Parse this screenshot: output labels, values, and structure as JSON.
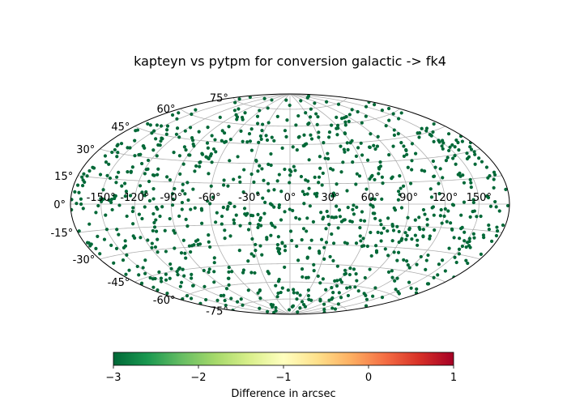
{
  "chart_data": {
    "type": "scatter",
    "title": "kapteyn vs pytpm for conversion galactic -> fk4",
    "projection": "hammer-aitoff",
    "grid": true,
    "xlabel": "",
    "ylabel": "",
    "x_tick_labels": [
      "-150°",
      "-120°",
      "-90°",
      "-60°",
      "-30°",
      "0°",
      "30°",
      "60°",
      "90°",
      "120°",
      "150°"
    ],
    "y_tick_labels": [
      "-75°",
      "-60°",
      "-45°",
      "-30°",
      "-15°",
      "0°",
      "15°",
      "30°",
      "45°",
      "60°",
      "75°"
    ],
    "x_ticks": [
      -150,
      -120,
      -90,
      -60,
      -30,
      0,
      30,
      60,
      90,
      120,
      150
    ],
    "y_ticks": [
      -75,
      -60,
      -45,
      -30,
      -15,
      0,
      15,
      30,
      45,
      60,
      75
    ],
    "xlim": [
      -180,
      180
    ],
    "ylim": [
      -90,
      90
    ],
    "marker_color": "#006837",
    "colorbar": {
      "label": "Difference in arcsec",
      "range": [
        -3,
        1
      ],
      "ticks": [
        -3,
        -2,
        -1,
        0,
        1
      ],
      "tick_labels": [
        "−3",
        "−2",
        "−1",
        "0",
        "1"
      ],
      "colormap": "RdYlGn_r",
      "colors": [
        "#006837",
        "#1a9850",
        "#66bd63",
        "#a6d96a",
        "#d9ef8b",
        "#ffffbf",
        "#fee08b",
        "#fdae61",
        "#f46d43",
        "#d73027",
        "#a50026"
      ]
    },
    "points": {
      "count": 1000,
      "distribution": "uniform on sphere",
      "value_all": -3
    }
  }
}
